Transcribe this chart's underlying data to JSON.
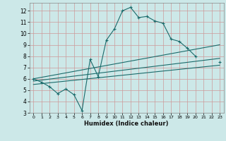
{
  "title": "",
  "xlabel": "Humidex (Indice chaleur)",
  "background_color": "#cce8e8",
  "grid_color": "#aaaacc",
  "line_color": "#1a6b6b",
  "xlim": [
    -0.5,
    23.5
  ],
  "ylim": [
    3,
    12.7
  ],
  "xticks": [
    0,
    1,
    2,
    3,
    4,
    5,
    6,
    7,
    8,
    9,
    10,
    11,
    12,
    13,
    14,
    15,
    16,
    17,
    18,
    19,
    20,
    21,
    22,
    23
  ],
  "yticks": [
    3,
    4,
    5,
    6,
    7,
    8,
    9,
    10,
    11,
    12
  ],
  "main_x": [
    0,
    1,
    2,
    3,
    4,
    5,
    6,
    7,
    8,
    9,
    10,
    11,
    12,
    13,
    14,
    15,
    16,
    17,
    18,
    19,
    20,
    21,
    23
  ],
  "main_y": [
    6.0,
    5.7,
    5.3,
    4.7,
    5.1,
    4.6,
    3.2,
    7.7,
    6.2,
    9.4,
    10.4,
    12.0,
    12.3,
    11.4,
    11.5,
    11.1,
    10.9,
    9.5,
    9.3,
    8.7,
    8.0,
    null,
    7.5
  ],
  "line1_x": [
    0,
    23
  ],
  "line1_y": [
    6.0,
    9.0
  ],
  "line2_x": [
    0,
    23
  ],
  "line2_y": [
    5.8,
    7.8
  ],
  "line3_x": [
    0,
    23
  ],
  "line3_y": [
    5.5,
    7.2
  ]
}
